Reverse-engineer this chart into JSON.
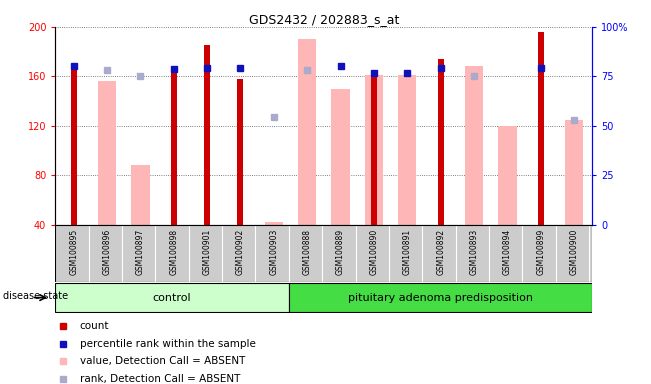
{
  "title": "GDS2432 / 202883_s_at",
  "samples": [
    "GSM100895",
    "GSM100896",
    "GSM100897",
    "GSM100898",
    "GSM100901",
    "GSM100902",
    "GSM100903",
    "GSM100888",
    "GSM100889",
    "GSM100890",
    "GSM100891",
    "GSM100892",
    "GSM100893",
    "GSM100894",
    "GSM100899",
    "GSM100900"
  ],
  "n_control": 7,
  "n_adenoma": 9,
  "red_bars": [
    168,
    null,
    null,
    166,
    185,
    158,
    null,
    null,
    null,
    161,
    null,
    174,
    null,
    null,
    196,
    null
  ],
  "pink_bars": [
    null,
    156,
    88,
    null,
    null,
    null,
    42,
    190,
    150,
    161,
    161,
    null,
    168,
    120,
    null,
    125
  ],
  "blue_squares_left": [
    168,
    null,
    null,
    166,
    167,
    167,
    null,
    null,
    168,
    163,
    163,
    167,
    null,
    null,
    167,
    null
  ],
  "lavender_squares_left": [
    null,
    165,
    160,
    null,
    null,
    null,
    127,
    165,
    null,
    null,
    null,
    null,
    160,
    null,
    null,
    125
  ],
  "ylim_left": [
    40,
    200
  ],
  "ylim_right": [
    0,
    100
  ],
  "left_ticks": [
    40,
    80,
    120,
    160,
    200
  ],
  "right_ticks": [
    0,
    25,
    50,
    75,
    100
  ],
  "right_tick_labels": [
    "0",
    "25",
    "50",
    "75",
    "100%"
  ],
  "red_color": "#CC0000",
  "pink_color": "#FFB6B6",
  "blue_color": "#1111BB",
  "lavender_color": "#AAAACC",
  "control_bg": "#CCFFCC",
  "adenoma_bg": "#44DD44",
  "grid_color": "#555555",
  "background_color": "#FFFFFF"
}
